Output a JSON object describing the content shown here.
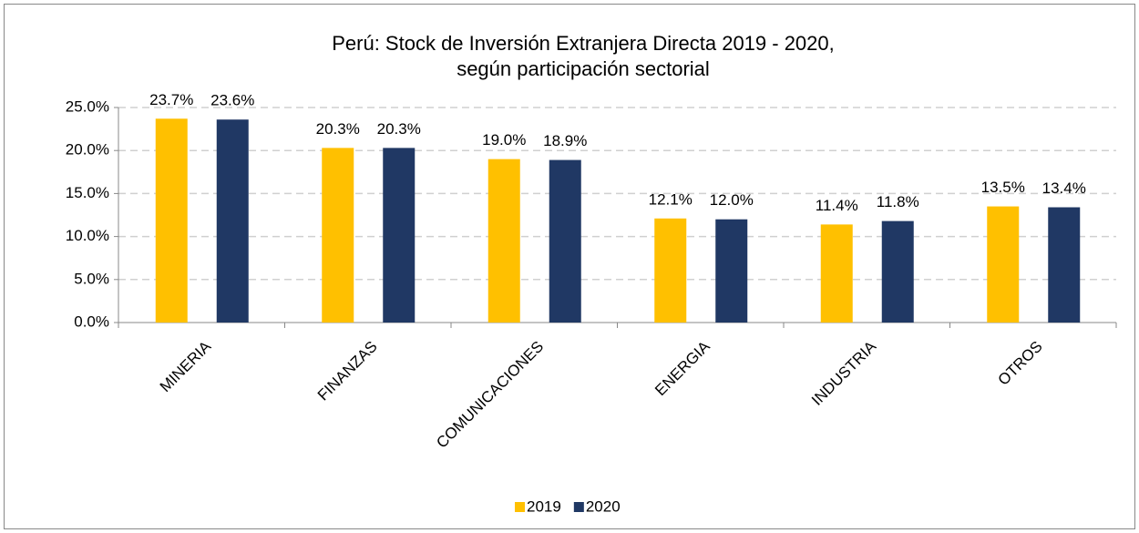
{
  "chart_data": {
    "type": "bar",
    "title": [
      "Perú: Stock de Inversión Extranjera Directa 2019 - 2020,",
      "según participación sectorial"
    ],
    "categories": [
      "MINERIA",
      "FINANZAS",
      "COMUNICACIONES",
      "ENERGIA",
      "INDUSTRIA",
      "OTROS"
    ],
    "series": [
      {
        "name": "2019",
        "color": "#ffc000",
        "values": [
          23.7,
          20.3,
          19.0,
          12.1,
          11.4,
          13.5
        ],
        "value_labels": [
          "23.7%",
          "20.3%",
          "19.0%",
          "12.1%",
          "11.4%",
          "13.5%"
        ]
      },
      {
        "name": "2020",
        "color": "#203864",
        "values": [
          23.6,
          20.3,
          18.9,
          12.0,
          11.8,
          13.4
        ],
        "value_labels": [
          "23.6%",
          "20.3%",
          "18.9%",
          "12.0%",
          "11.8%",
          "13.4%"
        ]
      }
    ],
    "ylim": [
      0,
      25
    ],
    "yticks": [
      {
        "value": 0,
        "label": "0.0%"
      },
      {
        "value": 5,
        "label": "5.0%"
      },
      {
        "value": 10,
        "label": "10.0%"
      },
      {
        "value": 15,
        "label": "15.0%"
      },
      {
        "value": 20,
        "label": "20.0%"
      },
      {
        "value": 25,
        "label": "25.0%"
      }
    ],
    "grid": true,
    "legend": "bottom"
  }
}
